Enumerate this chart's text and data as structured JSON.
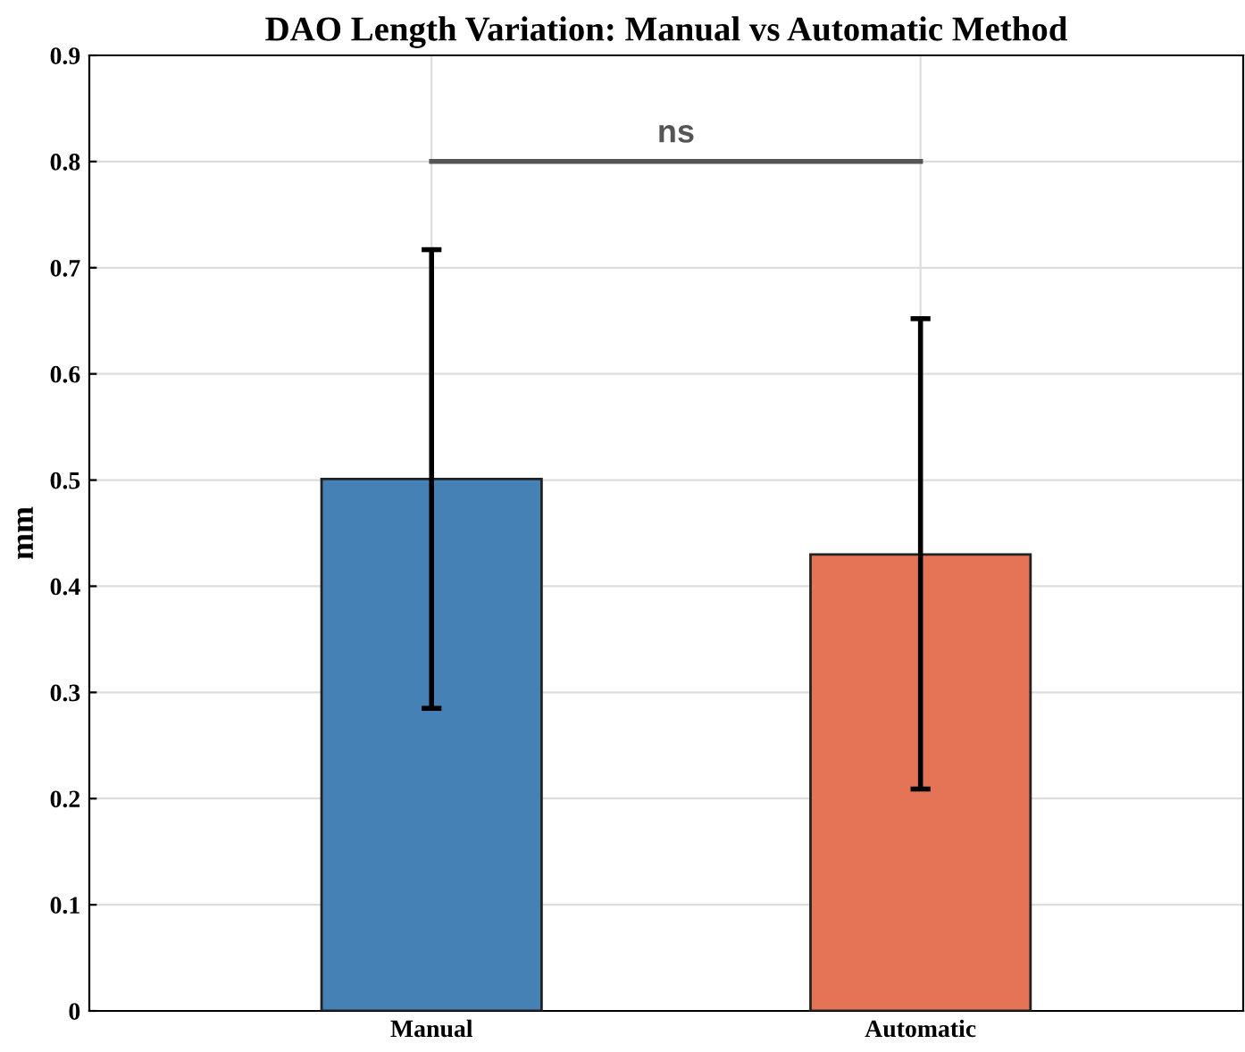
{
  "chart_data": {
    "type": "bar",
    "title": "DAO Length Variation: Manual vs Automatic Method",
    "ylabel": "mm",
    "categories": [
      "Manual",
      "Automatic"
    ],
    "values": [
      0.501,
      0.43
    ],
    "colors": [
      "#4581b5",
      "#e47455"
    ],
    "errors": [
      [
        0.285,
        0.717
      ],
      [
        0.209,
        0.652
      ]
    ],
    "ylim": [
      0,
      0.9
    ],
    "yticks": [
      0,
      0.1,
      0.2,
      0.3,
      0.4,
      0.5,
      0.6,
      0.7,
      0.8,
      0.9
    ],
    "grid": true,
    "annotations": [
      "ns"
    ]
  }
}
